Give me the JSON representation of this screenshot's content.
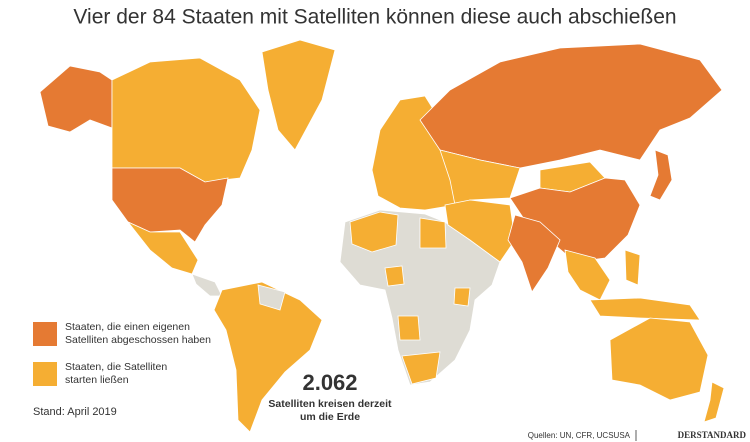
{
  "header": {
    "title": "Vier der 84 Staaten mit Satelliten können diese auch abschießen"
  },
  "legend": [
    {
      "lines": [
        "Staaten, die einen eigenen",
        "Satelliten abgeschossen haben"
      ],
      "color": "#e57a33"
    },
    {
      "lines": [
        "Staaten, die Satelliten",
        "starten ließen"
      ],
      "color": "#f5ae33"
    }
  ],
  "note": "Stand: April 2019",
  "highlight": {
    "number": "2.062",
    "lines": [
      "Satelliten kreisen derzeit",
      "um die Erde"
    ]
  },
  "footer": {
    "sources": "Quellen: UN, CFR, UCSUSA",
    "brand": "DERSTANDARD"
  }
}
